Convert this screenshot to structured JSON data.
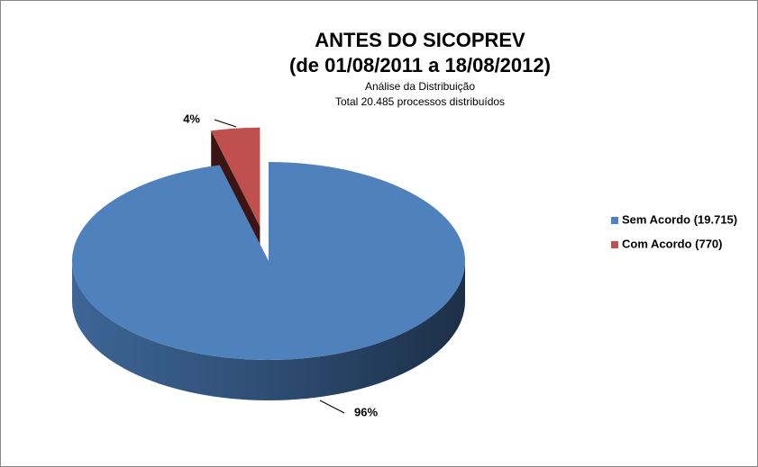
{
  "chart_data": {
    "type": "pie",
    "title": "ANTES DO SICOPREV",
    "title_line2": "(de 01/08/2011 a 18/08/2012)",
    "subtitle": "Análise da Distribuição",
    "subtitle_line2": "Total 20.485  processos distribuídos",
    "categories": [
      "Sem Acordo (19.715)",
      "Com Acordo (770)"
    ],
    "values": [
      96,
      4
    ],
    "value_labels": [
      "96%",
      "4%"
    ],
    "colors": [
      "#4f81bd",
      "#c0504d"
    ],
    "legend": "right"
  }
}
